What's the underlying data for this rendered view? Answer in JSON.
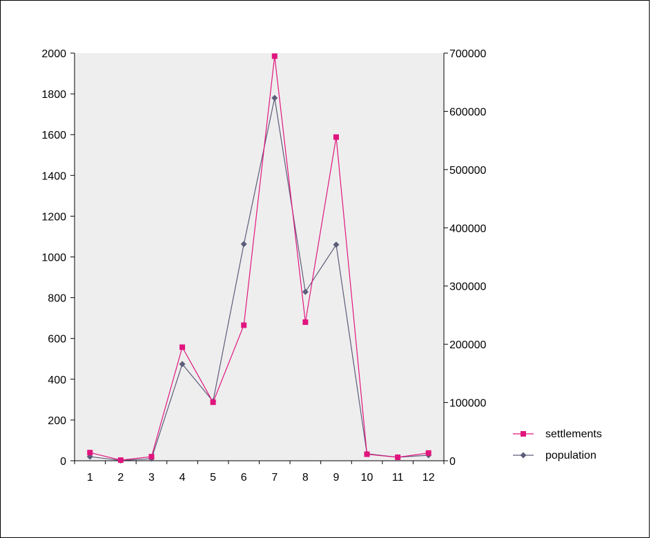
{
  "chart_data": {
    "type": "line",
    "categories": [
      "1",
      "2",
      "3",
      "4",
      "5",
      "6",
      "7",
      "8",
      "9",
      "10",
      "11",
      "12"
    ],
    "series": [
      {
        "name": "settlements",
        "axis": "left",
        "color": "#e0157e",
        "marker": "square",
        "values": [
          40,
          3,
          20,
          557,
          287,
          665,
          1985,
          680,
          1588,
          32,
          17,
          38
        ]
      },
      {
        "name": "population",
        "axis": "right",
        "color": "#5b5b7a",
        "marker": "diamond",
        "values": [
          7000,
          500,
          3500,
          166000,
          102000,
          372000,
          623000,
          290000,
          371000,
          12000,
          6000,
          9500
        ]
      }
    ],
    "y_left": {
      "range": [
        0,
        2000
      ],
      "ticks": [
        "0",
        "200",
        "400",
        "600",
        "800",
        "1000",
        "1200",
        "1400",
        "1600",
        "1800",
        "2000"
      ]
    },
    "y_right": {
      "range": [
        0,
        700000
      ],
      "ticks": [
        "0",
        "100000",
        "200000",
        "300000",
        "400000",
        "500000",
        "600000",
        "700000"
      ]
    },
    "plot_background": "#eeeeee",
    "grid": false,
    "legend": "right"
  }
}
